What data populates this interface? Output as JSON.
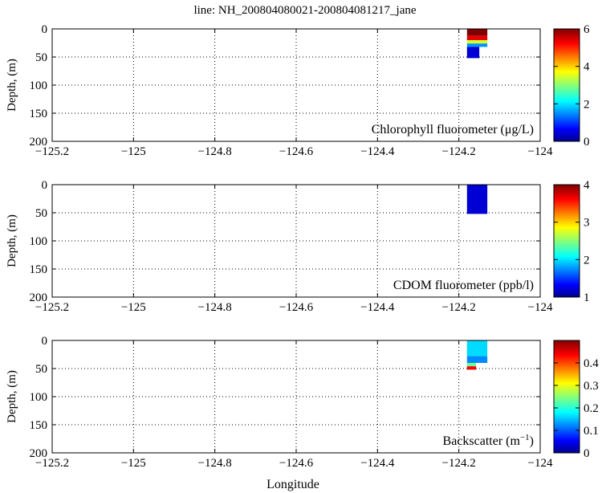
{
  "title": "line: NH_200804080021-200804081217_jane",
  "x_axis_label": "Longitude",
  "chart_data": [
    {
      "type": "heatmap",
      "panel_label": "Chlorophyll fluorometer (μg/L)",
      "label_main": "Chlorophyll fluorometer (",
      "label_unit": "μg/L",
      "label_end": ")",
      "ylabel": "Depth, (m)",
      "xlim": [
        -125.2,
        -124.0
      ],
      "ylim": [
        0,
        200
      ],
      "y_inverted": true,
      "x_ticks": [
        -125.2,
        -125,
        -124.8,
        -124.6,
        -124.4,
        -124.2,
        -124
      ],
      "x_tick_labels": [
        "−125.2",
        "−125",
        "−124.8",
        "−124.6",
        "−124.4",
        "−124.2",
        "−124"
      ],
      "y_ticks": [
        0,
        50,
        100,
        150,
        200
      ],
      "grid": true,
      "colorbar": {
        "min": 0,
        "max": 6,
        "ticks": [
          0,
          2,
          4,
          6
        ],
        "tick_labels": [
          "0",
          "2",
          "4",
          "6"
        ]
      },
      "data_patch": {
        "lon_range": [
          -124.18,
          -124.13
        ],
        "depth_range": [
          0,
          52
        ],
        "layers": [
          {
            "depth": [
              0,
              12
            ],
            "value": 6.0
          },
          {
            "depth": [
              12,
              20
            ],
            "value": 5.4
          },
          {
            "depth": [
              20,
              26
            ],
            "value": 3.5
          },
          {
            "depth": [
              26,
              32
            ],
            "value": 1.6
          },
          {
            "depth": [
              32,
              52
            ],
            "value": 0.5
          }
        ]
      }
    },
    {
      "type": "heatmap",
      "panel_label": "CDOM fluorometer (ppb/l)",
      "label_main": "CDOM fluorometer (ppb/l)",
      "label_unit": "",
      "label_end": "",
      "ylabel": "Depth, (m)",
      "xlim": [
        -125.2,
        -124.0
      ],
      "ylim": [
        0,
        200
      ],
      "y_inverted": true,
      "x_ticks": [
        -125.2,
        -125,
        -124.8,
        -124.6,
        -124.4,
        -124.2,
        -124
      ],
      "x_tick_labels": [
        "−125.2",
        "−125",
        "−124.8",
        "−124.6",
        "−124.4",
        "−124.2",
        "−124"
      ],
      "y_ticks": [
        0,
        50,
        100,
        150,
        200
      ],
      "grid": true,
      "colorbar": {
        "min": 1,
        "max": 4,
        "ticks": [
          1,
          2,
          3,
          4
        ],
        "tick_labels": [
          "1",
          "2",
          "3",
          "4"
        ]
      },
      "data_patch": {
        "lon_range": [
          -124.18,
          -124.13
        ],
        "depth_range": [
          0,
          52
        ],
        "layers": [
          {
            "depth": [
              0,
              52
            ],
            "value": 1.25
          }
        ]
      }
    },
    {
      "type": "heatmap",
      "panel_label": "Backscatter (m⁻¹)",
      "label_main": "Backscatter (m",
      "label_unit": "−1",
      "label_end": ")",
      "ylabel": "Depth, (m)",
      "xlim": [
        -125.2,
        -124.0
      ],
      "ylim": [
        0,
        200
      ],
      "y_inverted": true,
      "x_ticks": [
        -125.2,
        -125,
        -124.8,
        -124.6,
        -124.4,
        -124.2,
        -124
      ],
      "x_tick_labels": [
        "−125.2",
        "−125",
        "−124.8",
        "−124.6",
        "−124.4",
        "−124.2",
        "−124"
      ],
      "y_ticks": [
        0,
        50,
        100,
        150,
        200
      ],
      "grid": true,
      "colorbar": {
        "min": 0,
        "max": 0.5,
        "ticks": [
          0,
          0.1,
          0.2,
          0.3,
          0.4
        ],
        "tick_labels": [
          "0",
          "0.1",
          "0.2",
          "0.3",
          "0.4"
        ]
      },
      "data_patch": {
        "lon_range": [
          -124.18,
          -124.13
        ],
        "depth_range": [
          0,
          52
        ],
        "layers": [
          {
            "depth": [
              0,
              28
            ],
            "value": 0.17
          },
          {
            "depth": [
              28,
              40
            ],
            "value": 0.13
          },
          {
            "depth": [
              40,
              46
            ],
            "value": 0.24
          },
          {
            "depth": [
              46,
              52
            ],
            "value": 0.44
          }
        ]
      }
    }
  ]
}
